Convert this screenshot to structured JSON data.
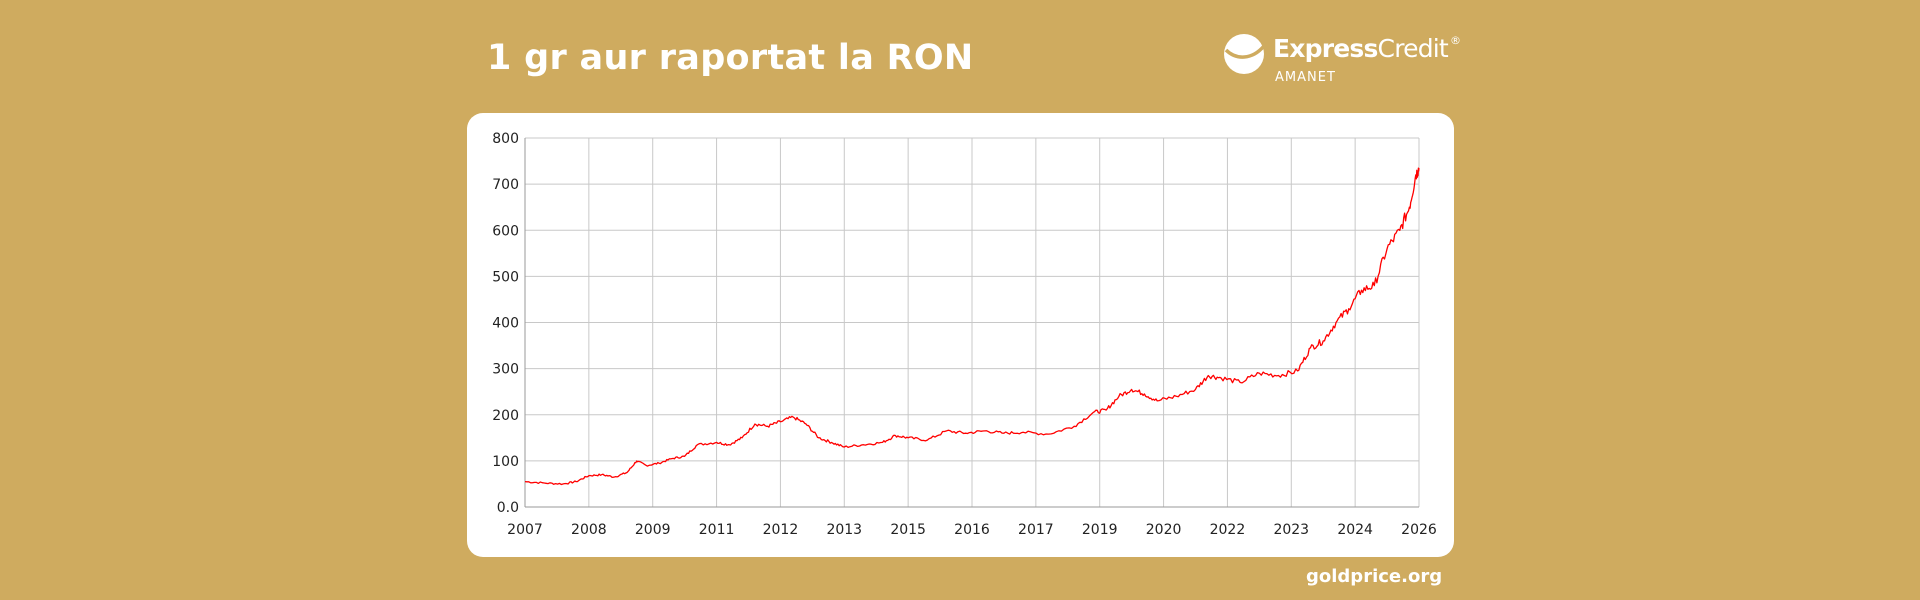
{
  "header": {
    "title": "1 gr aur raportat la RON"
  },
  "brand": {
    "name_bold": "Express",
    "name_regular": "Credit",
    "registered": "®",
    "subtitle": "AMANET",
    "logo_icon": "express-credit-leaf-icon"
  },
  "footer": {
    "source": "goldprice.org"
  },
  "colors": {
    "background": "#CFAB5F",
    "card": "#FFFFFF",
    "line": "#FF0000",
    "grid": "#C8C8C8"
  },
  "chart_data": {
    "type": "line",
    "title": "1 gr aur raportat la RON",
    "xlabel": "",
    "ylabel": "",
    "grid": true,
    "legend": "none",
    "ylim": [
      0,
      800
    ],
    "y_ticks": [
      "0.0",
      "100",
      "200",
      "300",
      "400",
      "500",
      "600",
      "700",
      "800"
    ],
    "x_ticks": [
      "2007",
      "2008",
      "2009",
      "2011",
      "2012",
      "2013",
      "2015",
      "2016",
      "2017",
      "2019",
      "2020",
      "2022",
      "2023",
      "2024",
      "2026"
    ],
    "series": [
      {
        "values": [
          [
            0,
            55
          ],
          [
            0.3,
            52
          ],
          [
            0.6,
            50
          ],
          [
            0.8,
            55
          ],
          [
            1.0,
            68
          ],
          [
            1.2,
            70
          ],
          [
            1.4,
            65
          ],
          [
            1.6,
            75
          ],
          [
            1.75,
            100
          ],
          [
            1.9,
            90
          ],
          [
            2.1,
            95
          ],
          [
            2.3,
            105
          ],
          [
            2.5,
            110
          ],
          [
            2.7,
            135
          ],
          [
            3.0,
            140
          ],
          [
            3.2,
            135
          ],
          [
            3.4,
            150
          ],
          [
            3.6,
            180
          ],
          [
            3.8,
            175
          ],
          [
            4.0,
            185
          ],
          [
            4.2,
            195
          ],
          [
            4.4,
            180
          ],
          [
            4.6,
            150
          ],
          [
            4.8,
            140
          ],
          [
            5.0,
            130
          ],
          [
            5.3,
            135
          ],
          [
            5.6,
            140
          ],
          [
            5.8,
            155
          ],
          [
            6.0,
            150
          ],
          [
            6.3,
            145
          ],
          [
            6.6,
            165
          ],
          [
            6.9,
            160
          ],
          [
            7.2,
            165
          ],
          [
            7.5,
            160
          ],
          [
            7.8,
            162
          ],
          [
            8.2,
            158
          ],
          [
            8.6,
            175
          ],
          [
            8.9,
            205
          ],
          [
            9.1,
            210
          ],
          [
            9.3,
            240
          ],
          [
            9.5,
            255
          ],
          [
            9.7,
            245
          ],
          [
            9.9,
            230
          ],
          [
            10.2,
            240
          ],
          [
            10.5,
            255
          ],
          [
            10.7,
            285
          ],
          [
            10.9,
            280
          ],
          [
            11.2,
            270
          ],
          [
            11.5,
            290
          ],
          [
            11.8,
            285
          ],
          [
            12.1,
            295
          ],
          [
            12.3,
            345
          ],
          [
            12.5,
            360
          ],
          [
            12.7,
            400
          ],
          [
            12.9,
            430
          ],
          [
            13.1,
            470
          ],
          [
            13.3,
            480
          ],
          [
            13.5,
            560
          ],
          [
            13.7,
            600
          ],
          [
            13.85,
            650
          ],
          [
            13.95,
            720
          ],
          [
            14.0,
            735
          ]
        ]
      }
    ]
  }
}
